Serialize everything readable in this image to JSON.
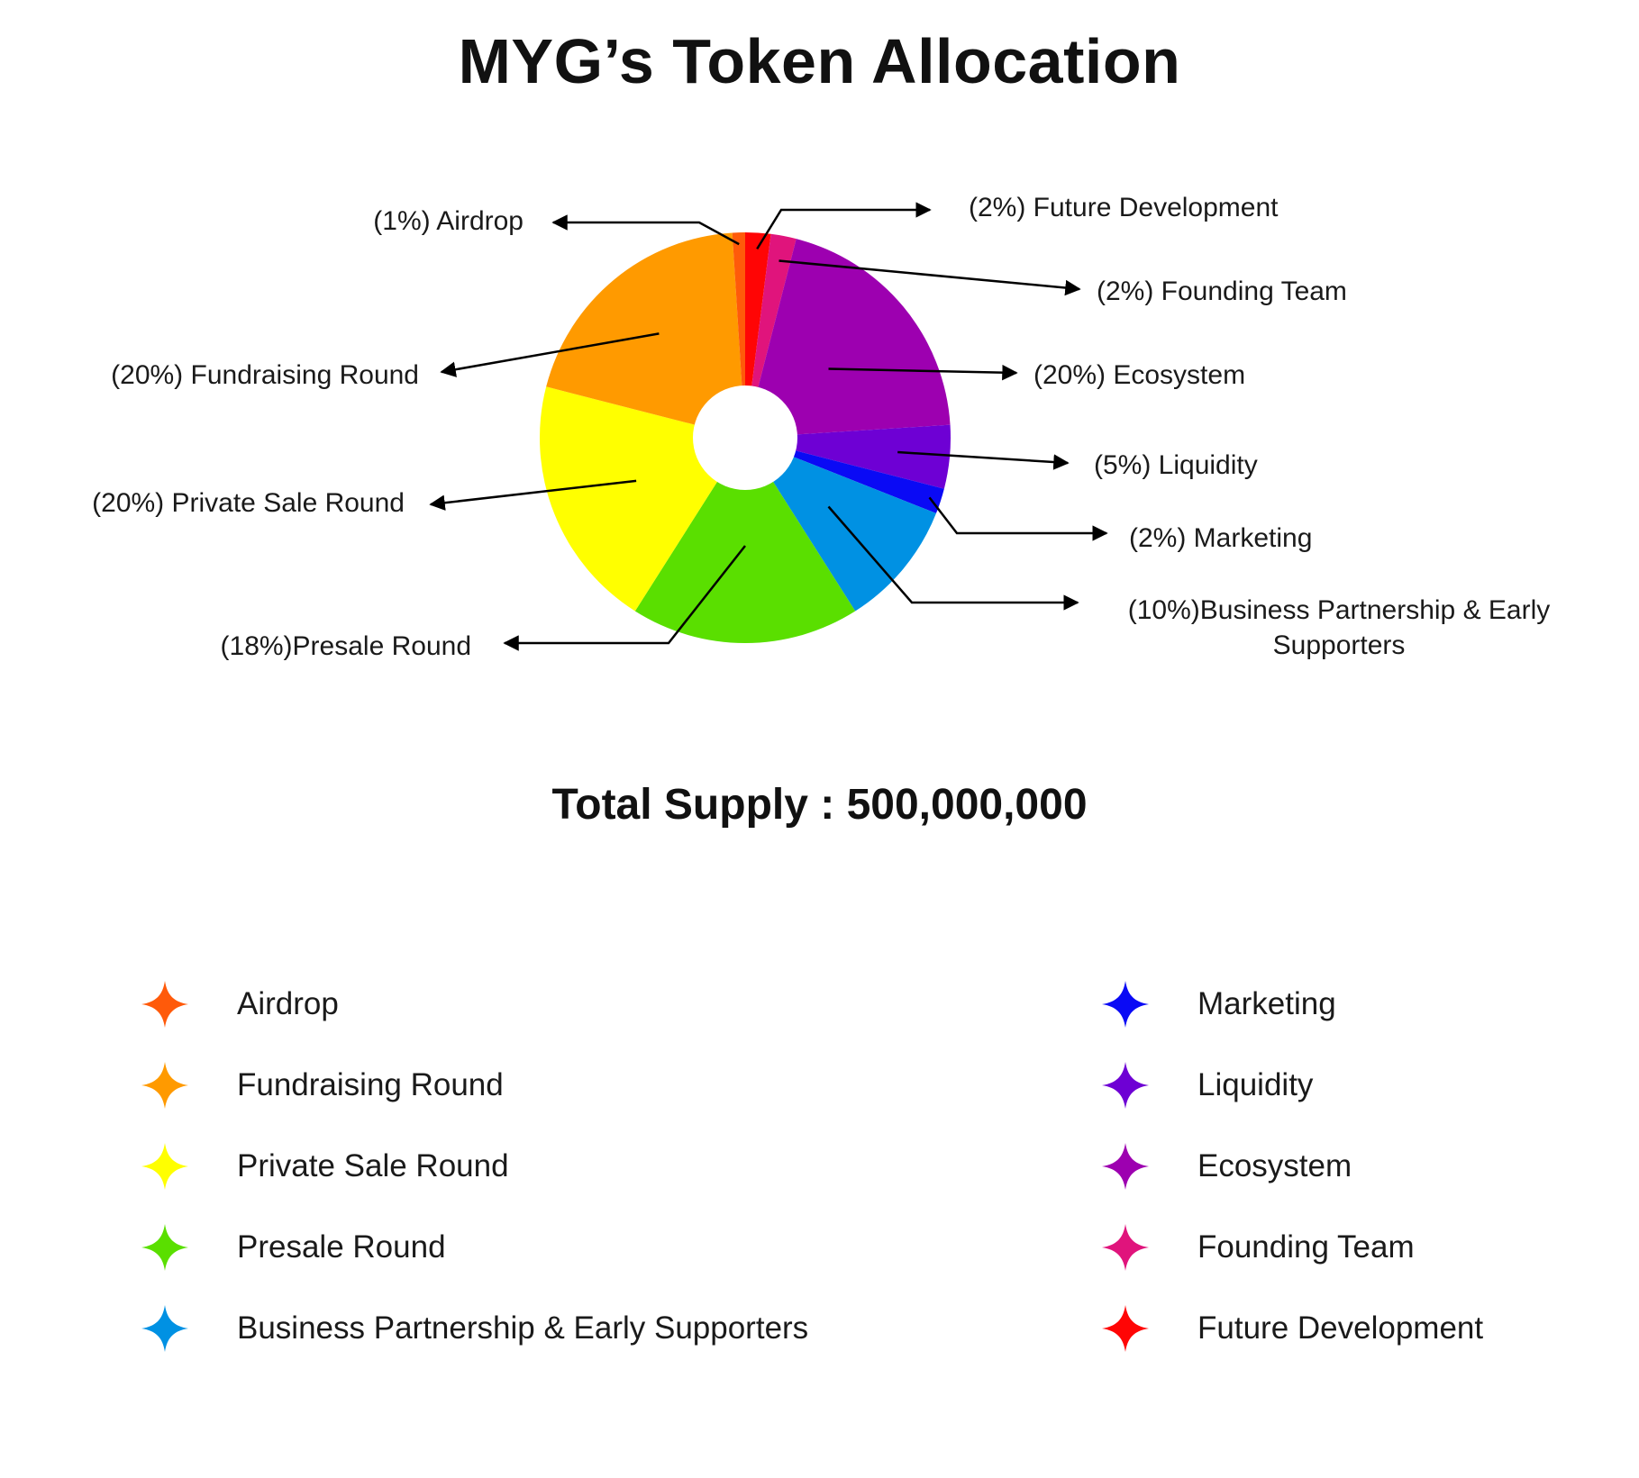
{
  "chart_data": {
    "type": "pie",
    "title": "MYG’s Token Allocation",
    "total_label": "Total Supply : 500,000,000",
    "slices": [
      {
        "name": "Future Development",
        "value": 2,
        "label": "(2%) Future Development",
        "color": "#ff0505"
      },
      {
        "name": "Founding Team",
        "value": 2,
        "label": "(2%) Founding Team",
        "color": "#e0147c"
      },
      {
        "name": "Ecosystem",
        "value": 20,
        "label": "(20%) Ecosystem",
        "color": "#9d00b0"
      },
      {
        "name": "Liquidity",
        "value": 5,
        "label": "(5%) Liquidity",
        "color": "#6e00d4"
      },
      {
        "name": "Marketing",
        "value": 2,
        "label": "(2%) Marketing",
        "color": "#0a0af5"
      },
      {
        "name": "Business Partnership & Early Supporters",
        "value": 10,
        "label": "(10%)Business Partnership & Early Supporters",
        "label_lines": [
          "(10%)Business Partnership & Early",
          "Supporters"
        ],
        "color": "#0091e3"
      },
      {
        "name": "Presale Round",
        "value": 18,
        "label": "(18%)Presale Round",
        "color": "#5adf00"
      },
      {
        "name": "Private Sale Round",
        "value": 20,
        "label": "(20%) Private Sale Round",
        "color": "#ffff00"
      },
      {
        "name": "Fundraising Round",
        "value": 20,
        "label": "(20%) Fundraising Round",
        "color": "#ff9a00"
      },
      {
        "name": "Airdrop",
        "value": 1,
        "label": "(1%) Airdrop",
        "color": "#ff5a0a"
      }
    ]
  },
  "legend": {
    "left": [
      {
        "label": "Airdrop",
        "color": "#ff5a0a",
        "icon": "sparkle-icon"
      },
      {
        "label": "Fundraising Round",
        "color": "#ff9a00",
        "icon": "sparkle-icon"
      },
      {
        "label": "Private Sale Round",
        "color": "#ffff00",
        "icon": "sparkle-icon"
      },
      {
        "label": "Presale Round",
        "color": "#5adf00",
        "icon": "sparkle-icon"
      },
      {
        "label": "Business Partnership & Early Supporters",
        "color": "#0091e3",
        "icon": "sparkle-icon"
      }
    ],
    "right": [
      {
        "label": "Marketing",
        "color": "#0a0af5",
        "icon": "sparkle-icon"
      },
      {
        "label": "Liquidity",
        "color": "#6e00d4",
        "icon": "sparkle-icon"
      },
      {
        "label": "Ecosystem",
        "color": "#9d00b0",
        "icon": "sparkle-icon"
      },
      {
        "label": "Founding Team",
        "color": "#e0147c",
        "icon": "sparkle-icon"
      },
      {
        "label": "Future Development",
        "color": "#ff0505",
        "icon": "sparkle-icon"
      }
    ]
  }
}
